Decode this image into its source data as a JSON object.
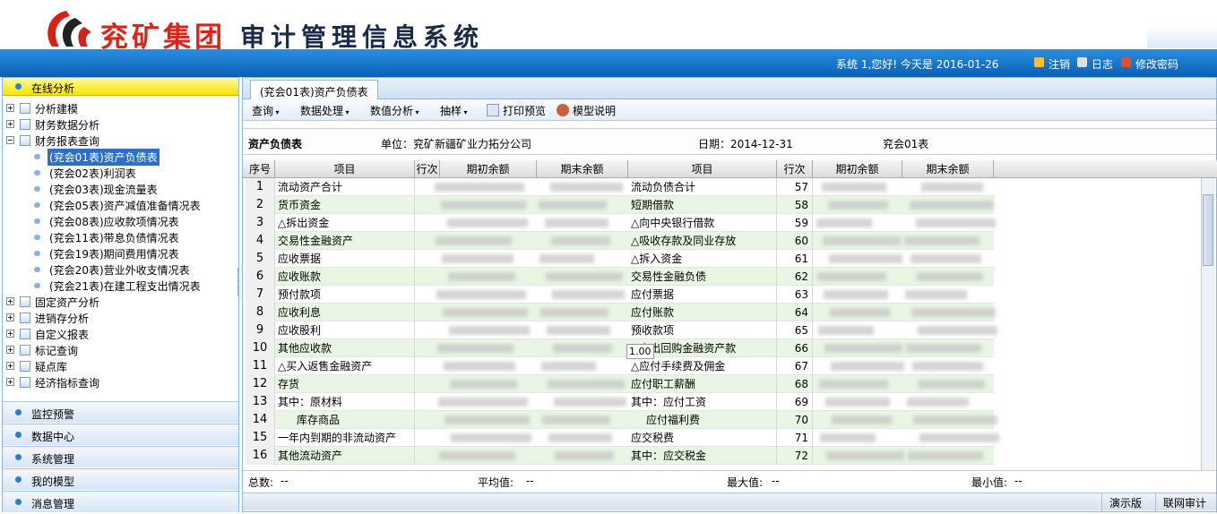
{
  "header": {
    "logo_text": "兖矿集团",
    "system_title": "审计管理信息系统"
  },
  "topbar": {
    "greeting": "系统 1,您好! 今天是 2016-01-26",
    "links": [
      "注销",
      "日志",
      "修改密码"
    ]
  },
  "sidebar": {
    "active_section": "在线分析",
    "tree": [
      {
        "label": "分析建模"
      },
      {
        "label": "财务数据分析"
      },
      {
        "label": "财务报表查询",
        "children": [
          "(兖会01表)资产负债表",
          "(兖会02表)利润表",
          "(兖会03表)现金流量表",
          "(兖会05表)资产减值准备情况表",
          "(兖会08表)应收款项情况表",
          "(兖会11表)带息负债情况表",
          "(兖会19表)期间费用情况表",
          "(兖会20表)营业外收支情况表",
          "(兖会21表)在建工程支出情况表"
        ]
      },
      {
        "label": "固定资产分析"
      },
      {
        "label": "进销存分析"
      },
      {
        "label": "自定义报表"
      },
      {
        "label": "标记查询"
      },
      {
        "label": "疑点库"
      },
      {
        "label": "经济指标查询"
      }
    ],
    "sections": [
      "监控预警",
      "数据中心",
      "系统管理",
      "我的模型",
      "消息管理"
    ]
  },
  "tab": "(兖会01表)资产负债表",
  "toolbar": [
    "查询",
    "数据处理",
    "数值分析",
    "抽样",
    "打印预览",
    "模型说明"
  ],
  "report": {
    "name": "资产负债表",
    "unit": "单位：兖矿新疆矿业力拓分公司",
    "date": "日期：2014-12-31",
    "code": "兖会01表"
  },
  "table": {
    "columns": [
      "序号",
      "项目",
      "行次",
      "期初余额",
      "期末余额",
      "项目",
      "行次",
      "期初余额",
      "期末余额"
    ],
    "rows": [
      [
        1,
        "流动资产合计",
        "流动负债合计",
        57
      ],
      [
        2,
        "货币资金",
        "短期借款",
        58
      ],
      [
        3,
        "△拆出资金",
        "△向中央银行借款",
        59
      ],
      [
        4,
        "交易性金融资产",
        "△吸收存款及同业存放",
        60
      ],
      [
        5,
        "应收票据",
        "△拆入资金",
        61
      ],
      [
        6,
        "应收账款",
        "交易性金融负债",
        62
      ],
      [
        7,
        "预付款项",
        "应付票据",
        63
      ],
      [
        8,
        "应收利息",
        "应付账款",
        64
      ],
      [
        9,
        "应收股利",
        "预收款项",
        65
      ],
      [
        10,
        "其他应收款",
        "△卖出回购金融资产款",
        66
      ],
      [
        11,
        "△买入返售金融资产",
        "△应付手续费及佣金",
        67
      ],
      [
        12,
        "存货",
        "应付职工薪酬",
        68
      ],
      [
        13,
        "其中：原材料",
        "其中：应付工资",
        69
      ],
      [
        14,
        "库存商品",
        "应付福利费",
        70
      ],
      [
        15,
        "一年内到期的非流动资产",
        "应交税费",
        71
      ],
      [
        16,
        "其他流动资产",
        "其中：应交税金",
        72
      ]
    ],
    "tooltip": "1.00"
  },
  "stats": [
    [
      "总数:",
      "--"
    ],
    [
      "平均值:",
      "--"
    ],
    [
      "最大值:",
      "--"
    ],
    [
      "最小值:",
      "--"
    ]
  ],
  "status": [
    "演示版",
    "联网审计"
  ]
}
